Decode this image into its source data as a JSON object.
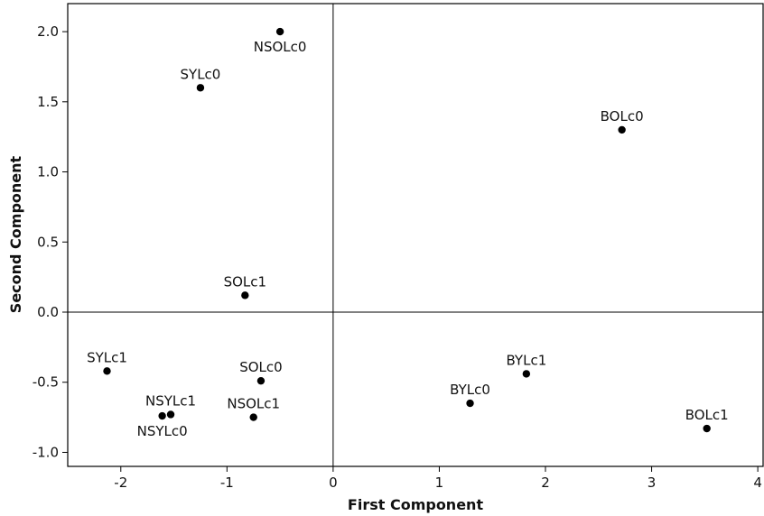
{
  "chart_data": {
    "type": "scatter",
    "title": "",
    "xlabel": "First Component",
    "ylabel": "Second Component",
    "xlim": [
      -2.5,
      4.05
    ],
    "ylim": [
      -1.1,
      2.2
    ],
    "x_ticks": [
      -2,
      -1,
      0,
      1,
      2,
      3,
      4
    ],
    "y_ticks": [
      -1.0,
      -0.5,
      0.0,
      0.5,
      1.0,
      1.5,
      2.0
    ],
    "x_tick_labels": [
      "-2",
      "-1",
      "0",
      "1",
      "2",
      "3",
      "4"
    ],
    "y_tick_labels": [
      "-1.0",
      "-0.5",
      "0.0",
      "0.5",
      "1.0",
      "1.5",
      "2.0"
    ],
    "reference_lines": {
      "x": 0,
      "y": 0
    },
    "grid": false,
    "marker_color": "#000000",
    "points": [
      {
        "label": "NSOLc0",
        "x": -0.5,
        "y": 2.0,
        "label_pos": "below"
      },
      {
        "label": "SYLc0",
        "x": -1.25,
        "y": 1.6,
        "label_pos": "above"
      },
      {
        "label": "BOLc0",
        "x": 2.72,
        "y": 1.3,
        "label_pos": "above"
      },
      {
        "label": "SOLc1",
        "x": -0.83,
        "y": 0.12,
        "label_pos": "above"
      },
      {
        "label": "SYLc1",
        "x": -2.13,
        "y": -0.42,
        "label_pos": "above"
      },
      {
        "label": "SOLc0",
        "x": -0.68,
        "y": -0.49,
        "label_pos": "above"
      },
      {
        "label": "NSYLc1",
        "x": -1.53,
        "y": -0.73,
        "label_pos": "above"
      },
      {
        "label": "NSYLc0",
        "x": -1.61,
        "y": -0.74,
        "label_pos": "below"
      },
      {
        "label": "NSOLc1",
        "x": -0.75,
        "y": -0.75,
        "label_pos": "above"
      },
      {
        "label": "BYLc0",
        "x": 1.29,
        "y": -0.65,
        "label_pos": "above"
      },
      {
        "label": "BYLc1",
        "x": 1.82,
        "y": -0.44,
        "label_pos": "above"
      },
      {
        "label": "BOLc1",
        "x": 3.52,
        "y": -0.83,
        "label_pos": "above"
      }
    ]
  }
}
